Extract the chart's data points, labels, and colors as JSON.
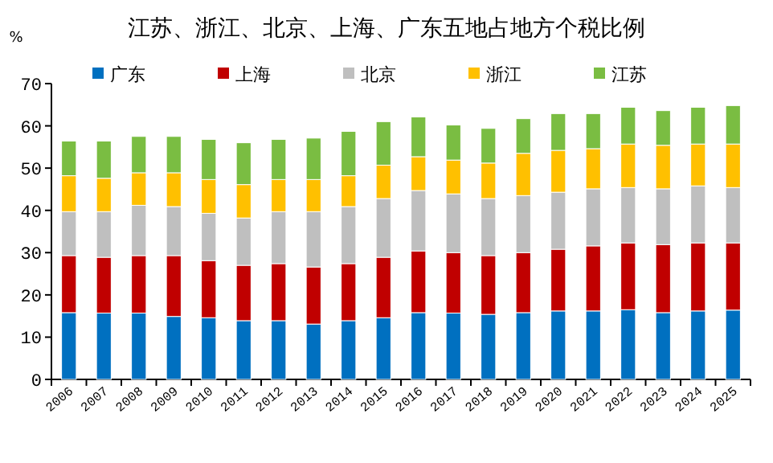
{
  "chart_data": {
    "type": "bar",
    "stacked": true,
    "title": "江苏、浙江、北京、上海、广东五地占地方个税比例",
    "ylabel": "%",
    "categories": [
      "2006",
      "2007",
      "2008",
      "2009",
      "2010",
      "2011",
      "2012",
      "2013",
      "2014",
      "2015",
      "2016",
      "2017",
      "2018",
      "2019",
      "2020",
      "2021",
      "2022",
      "2023",
      "2024",
      "2025"
    ],
    "series": [
      {
        "name": "广东",
        "color": "#0070c0",
        "values": [
          15.8,
          15.7,
          15.7,
          14.9,
          14.6,
          13.9,
          13.9,
          13.1,
          13.9,
          14.6,
          15.8,
          15.7,
          15.4,
          15.8,
          16.2,
          16.2,
          16.5,
          15.8,
          16.2,
          16.4
        ]
      },
      {
        "name": "上海",
        "color": "#c00000",
        "values": [
          13.5,
          13.2,
          13.6,
          14.4,
          13.5,
          13.1,
          13.5,
          13.5,
          13.5,
          14.3,
          14.6,
          14.3,
          13.9,
          14.2,
          14.6,
          15.4,
          15.8,
          16.1,
          16.1,
          15.9
        ]
      },
      {
        "name": "北京",
        "color": "#bfbfbf",
        "values": [
          10.4,
          10.8,
          11.9,
          11.6,
          11.2,
          11.2,
          12.3,
          13.1,
          13.5,
          13.9,
          14.3,
          13.9,
          13.5,
          13.5,
          13.5,
          13.5,
          13.1,
          13.2,
          13.5,
          13.1
        ]
      },
      {
        "name": "浙江",
        "color": "#ffc000",
        "values": [
          8.5,
          7.9,
          7.7,
          8.0,
          8.0,
          7.9,
          7.6,
          7.6,
          7.3,
          7.9,
          8.0,
          8.0,
          8.4,
          10.0,
          9.9,
          9.5,
          10.3,
          10.3,
          9.9,
          10.3
        ]
      },
      {
        "name": "江苏",
        "color": "#7abd42",
        "values": [
          8.2,
          8.8,
          8.6,
          8.6,
          9.5,
          9.9,
          9.5,
          9.8,
          10.5,
          10.3,
          9.4,
          8.3,
          8.2,
          8.2,
          8.7,
          8.3,
          8.7,
          8.2,
          8.7,
          9.1
        ]
      }
    ],
    "ylim": [
      0,
      70
    ],
    "yticks": [
      0,
      10,
      20,
      30,
      40,
      50,
      60,
      70
    ],
    "legend": "top",
    "grid": false
  }
}
